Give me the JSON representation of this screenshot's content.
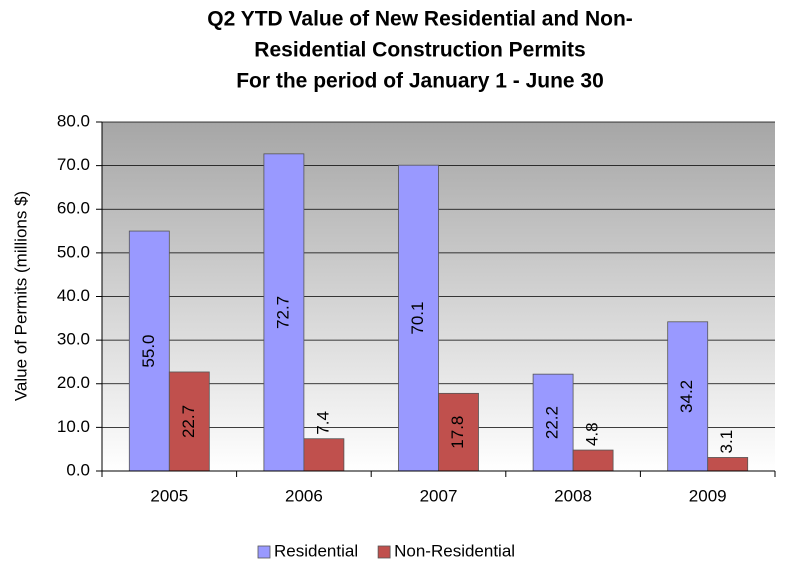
{
  "chart_data": {
    "type": "bar",
    "title": [
      "Q2 YTD Value of New Residential and Non-",
      "Residential Construction Permits",
      "For the period of January 1 - June 30"
    ],
    "y_label": "Value of Permits (millions $)",
    "categories": [
      "2005",
      "2006",
      "2007",
      "2008",
      "2009"
    ],
    "series": [
      {
        "name": "Residential",
        "color": "#9999ff",
        "values": [
          55.0,
          72.7,
          70.1,
          22.2,
          34.2
        ],
        "value_labels": [
          "55.0",
          "72.7",
          "70.1",
          "22.2",
          "34.2"
        ]
      },
      {
        "name": "Non-Residential",
        "color": "#c0504d",
        "values": [
          22.7,
          7.4,
          17.8,
          4.8,
          3.1
        ],
        "value_labels": [
          "22.7",
          "7.4",
          "17.8",
          "4.8",
          "3.1"
        ]
      }
    ],
    "ylim": [
      0,
      80
    ],
    "yticks": [
      {
        "value": 0,
        "label": "0.0"
      },
      {
        "value": 10,
        "label": "10.0"
      },
      {
        "value": 20,
        "label": "20.0"
      },
      {
        "value": 30,
        "label": "30.0"
      },
      {
        "value": 40,
        "label": "40.0"
      },
      {
        "value": 50,
        "label": "50.0"
      },
      {
        "value": 60,
        "label": "60.0"
      },
      {
        "value": 70,
        "label": "70.0"
      },
      {
        "value": 80,
        "label": "80.0"
      }
    ],
    "grid": true,
    "legend": "bottom"
  }
}
